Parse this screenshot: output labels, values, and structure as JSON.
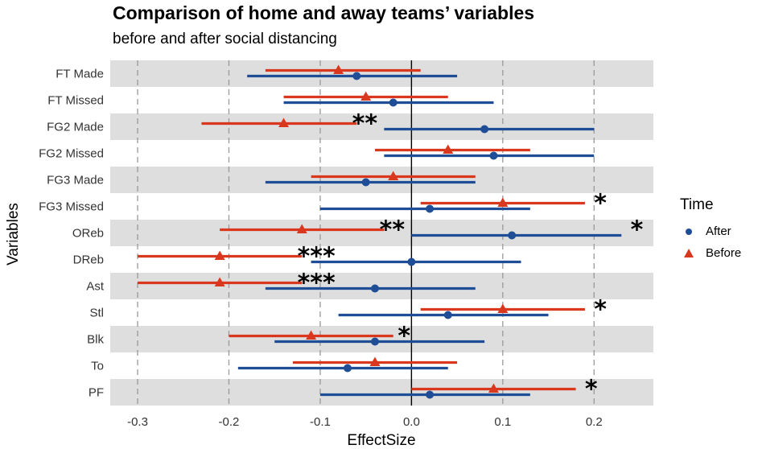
{
  "chart_data": {
    "type": "forest",
    "title": "Comparison of home and away teams’ variables",
    "subtitle": "before and after social distancing",
    "xlabel": "EffectSize",
    "ylabel": "Variables",
    "xlim": [
      -0.33,
      0.265
    ],
    "xticks": [
      -0.3,
      -0.2,
      -0.1,
      0.0,
      0.1,
      0.2
    ],
    "xtick_labels": [
      "-0.3",
      "-0.2",
      "-0.1",
      "0.0",
      "0.1",
      "0.2"
    ],
    "categories": [
      "FT Made",
      "FT Missed",
      "FG2 Made",
      "FG2 Missed",
      "FG3 Made",
      "FG3 Missed",
      "OReb",
      "DReb",
      "Ast",
      "Stl",
      "Blk",
      "To",
      "PF"
    ],
    "series": [
      {
        "name": "After",
        "color": "#1f4e96",
        "marker": "circle",
        "values": [
          -0.06,
          -0.02,
          0.08,
          0.09,
          -0.05,
          0.02,
          0.11,
          0.0,
          -0.04,
          0.04,
          -0.04,
          -0.07,
          0.02
        ],
        "lower": [
          -0.18,
          -0.14,
          -0.03,
          -0.03,
          -0.16,
          -0.1,
          0.0,
          -0.11,
          -0.16,
          -0.08,
          -0.15,
          -0.19,
          -0.1
        ],
        "upper": [
          0.05,
          0.09,
          0.2,
          0.2,
          0.07,
          0.13,
          0.23,
          0.12,
          0.07,
          0.15,
          0.08,
          0.04,
          0.13
        ]
      },
      {
        "name": "Before",
        "color": "#d9381e",
        "marker": "triangle",
        "values": [
          -0.08,
          -0.05,
          -0.14,
          0.04,
          -0.02,
          0.1,
          -0.12,
          -0.21,
          -0.21,
          0.1,
          -0.11,
          -0.04,
          0.09
        ],
        "lower": [
          -0.16,
          -0.14,
          -0.23,
          -0.04,
          -0.11,
          0.01,
          -0.21,
          -0.3,
          -0.3,
          0.01,
          -0.2,
          -0.13,
          0.0
        ],
        "upper": [
          0.01,
          0.04,
          -0.06,
          0.13,
          0.07,
          0.19,
          -0.03,
          -0.12,
          -0.12,
          0.19,
          -0.02,
          0.05,
          0.18
        ]
      }
    ],
    "annotations": [
      {
        "category": "FG2 Made",
        "x": -0.065,
        "text": "**"
      },
      {
        "category": "FG3 Missed",
        "x": 0.2,
        "text": "*"
      },
      {
        "category": "OReb",
        "x": -0.035,
        "text": "**"
      },
      {
        "category": "OReb",
        "x": 0.24,
        "text": "*"
      },
      {
        "category": "DReb",
        "x": -0.125,
        "text": "***"
      },
      {
        "category": "Ast",
        "x": -0.125,
        "text": "***"
      },
      {
        "category": "Stl",
        "x": 0.2,
        "text": "*"
      },
      {
        "category": "Blk",
        "x": -0.015,
        "text": "*"
      },
      {
        "category": "PF",
        "x": 0.19,
        "text": "*"
      }
    ],
    "legend_title": "Time",
    "legend_position": "right",
    "grid": {
      "vertical_dashed": true,
      "alternating_row_bands": true
    },
    "vline_at": 0.0
  }
}
